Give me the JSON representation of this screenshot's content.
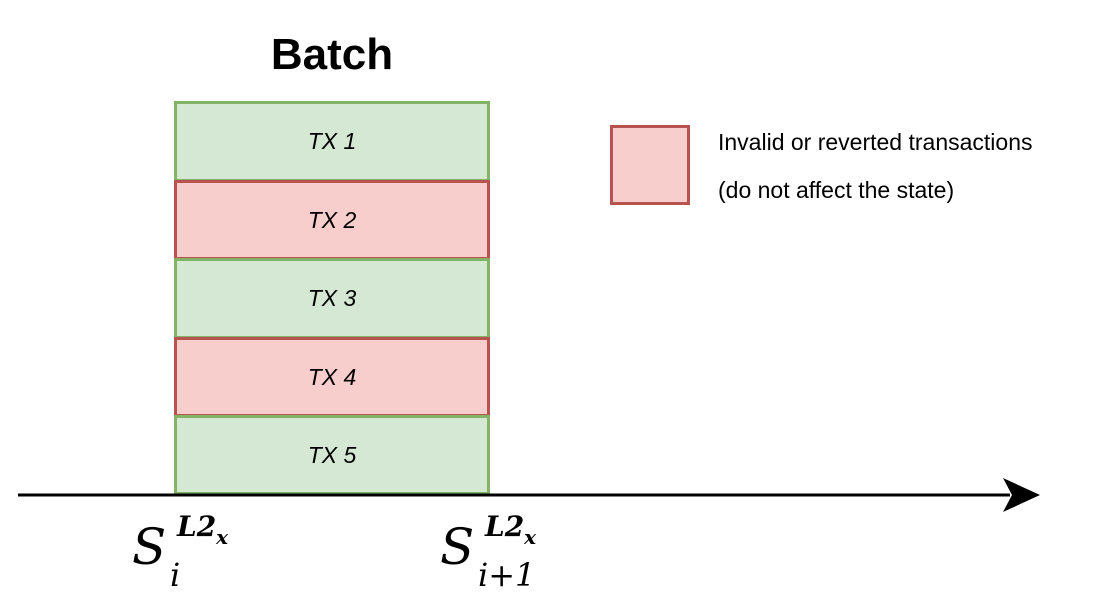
{
  "title": "Batch",
  "transactions": [
    {
      "label": "TX 1",
      "status": "valid"
    },
    {
      "label": "TX 2",
      "status": "invalid"
    },
    {
      "label": "TX 3",
      "status": "valid"
    },
    {
      "label": "TX 4",
      "status": "invalid"
    },
    {
      "label": "TX 5",
      "status": "valid"
    }
  ],
  "legend": {
    "line1": "Invalid or reverted transactions",
    "line2": "(do not affect the state)"
  },
  "states": {
    "start": {
      "symbol": "S",
      "superscript": "L2",
      "superscript_sub": "x",
      "subscript": "i"
    },
    "end": {
      "symbol": "S",
      "superscript": "L2",
      "superscript_sub": "x",
      "subscript": "i+1"
    }
  },
  "colors": {
    "valid_fill": "#d5e8d4",
    "valid_stroke": "#82b366",
    "invalid_fill": "#f8cecc",
    "invalid_stroke": "#b85450"
  }
}
